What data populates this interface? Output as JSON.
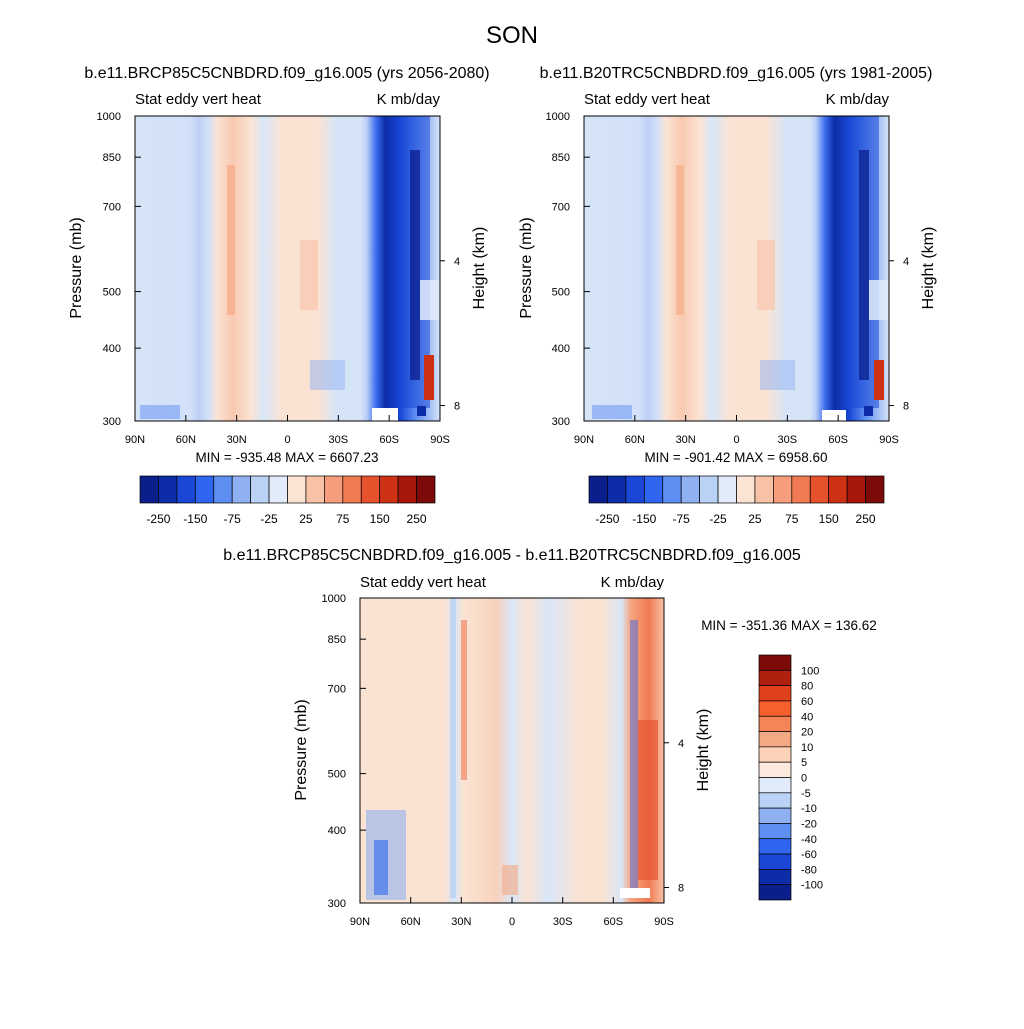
{
  "title": "SON",
  "panels": [
    {
      "id": "future",
      "case_title": "b.e11.BRCP85C5CNBDRD.f09_g16.005 (yrs 2056-2080)",
      "left_label": "Stat eddy vert heat",
      "right_label": "K mb/day",
      "y_axis_title": "Pressure (mb)",
      "y2_axis_title": "Height (km)",
      "stats": "MIN = -935.48  MAX = 6607.23"
    },
    {
      "id": "present",
      "case_title": "b.e11.B20TRC5CNBDRD.f09_g16.005 (yrs 1981-2005)",
      "left_label": "Stat eddy vert heat",
      "right_label": "K mb/day",
      "y_axis_title": "Pressure (mb)",
      "y2_axis_title": "Height (km)",
      "stats": "MIN = -901.42  MAX = 6958.60"
    },
    {
      "id": "difference",
      "case_title": "b.e11.BRCP85C5CNBDRD.f09_g16.005 - b.e11.B20TRC5CNBDRD.f09_g16.005",
      "left_label": "Stat eddy vert heat",
      "right_label": "K mb/day",
      "y_axis_title": "Pressure (mb)",
      "y2_axis_title": "Height (km)",
      "stats": "MIN = -351.36  MAX = 136.62"
    }
  ],
  "chart_data": [
    {
      "type": "heatmap",
      "panel": "future",
      "x_tick_labels": [
        "90N",
        "60N",
        "30N",
        "0",
        "30S",
        "60S",
        "90S"
      ],
      "y_tick_labels": [
        "300",
        "400",
        "500",
        "700",
        "850",
        "1000"
      ],
      "y_ticks": [
        300,
        400,
        500,
        700,
        850,
        1000
      ],
      "y2_tick_labels": [
        "8",
        "4"
      ],
      "y2_ticks": [
        8,
        4
      ],
      "ylim": [
        1000,
        300
      ],
      "y_scale": "log",
      "min": -935.48,
      "max": 6607.23,
      "colorbar_levels": [
        "-250",
        "-150",
        "-75",
        "-25",
        "25",
        "75",
        "150",
        "250"
      ],
      "colorbar_colors": [
        "#0a1e8c",
        "#0d2ca8",
        "#1a47d6",
        "#2f66f0",
        "#5e8ef2",
        "#8fb1f2",
        "#bad2f5",
        "#e1ebfa",
        "#fce4d4",
        "#f8c2a6",
        "#f59d7d",
        "#f07a52",
        "#e6522c",
        "#cd3215",
        "#a8170c",
        "#7c0a08"
      ]
    },
    {
      "type": "heatmap",
      "panel": "present",
      "x_tick_labels": [
        "90N",
        "60N",
        "30N",
        "0",
        "30S",
        "60S",
        "90S"
      ],
      "y_tick_labels": [
        "300",
        "400",
        "500",
        "700",
        "850",
        "1000"
      ],
      "y_ticks": [
        300,
        400,
        500,
        700,
        850,
        1000
      ],
      "y2_tick_labels": [
        "8",
        "4"
      ],
      "y2_ticks": [
        8,
        4
      ],
      "ylim": [
        1000,
        300
      ],
      "y_scale": "log",
      "min": -901.42,
      "max": 6958.6,
      "colorbar_levels": [
        "-250",
        "-150",
        "-75",
        "-25",
        "25",
        "75",
        "150",
        "250"
      ],
      "colorbar_colors": [
        "#0a1e8c",
        "#0d2ca8",
        "#1a47d6",
        "#2f66f0",
        "#5e8ef2",
        "#8fb1f2",
        "#bad2f5",
        "#e1ebfa",
        "#fce4d4",
        "#f8c2a6",
        "#f59d7d",
        "#f07a52",
        "#e6522c",
        "#cd3215",
        "#a8170c",
        "#7c0a08"
      ]
    },
    {
      "type": "heatmap",
      "panel": "difference",
      "x_tick_labels": [
        "90N",
        "60N",
        "30N",
        "0",
        "30S",
        "60S",
        "90S"
      ],
      "y_tick_labels": [
        "300",
        "400",
        "500",
        "700",
        "850",
        "1000"
      ],
      "y_ticks": [
        300,
        400,
        500,
        700,
        850,
        1000
      ],
      "y2_tick_labels": [
        "8",
        "4"
      ],
      "y2_ticks": [
        8,
        4
      ],
      "ylim": [
        1000,
        300
      ],
      "y_scale": "log",
      "min": -351.36,
      "max": 136.62,
      "colorbar_levels": [
        "100",
        "80",
        "60",
        "40",
        "20",
        "10",
        "5",
        "0",
        "-5",
        "-10",
        "-20",
        "-40",
        "-60",
        "-80",
        "-100"
      ],
      "colorbar_colors": [
        "#7c0a08",
        "#b0200e",
        "#e0401c",
        "#f5602e",
        "#f58456",
        "#f5a884",
        "#fcd2b8",
        "#fce8dc",
        "#e1ebfa",
        "#bad2f5",
        "#8fb1f2",
        "#5e8ef2",
        "#2f66f0",
        "#1a47d6",
        "#0d2ca8",
        "#0a1e8c"
      ]
    }
  ]
}
